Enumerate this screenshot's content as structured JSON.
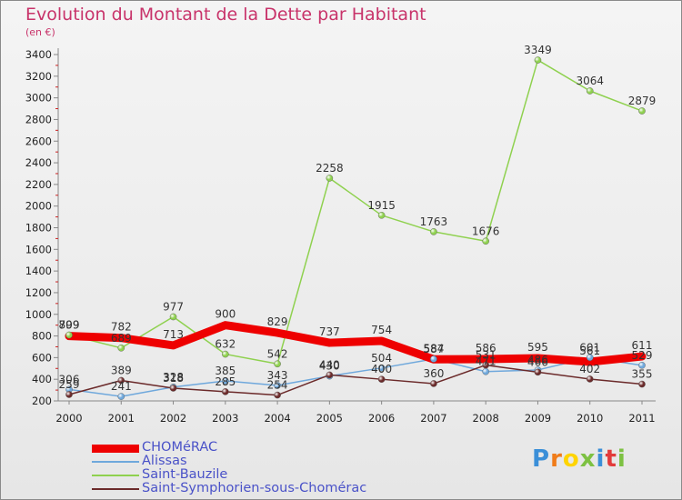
{
  "title": "Evolution du Montant de la Dette par Habitant",
  "subtitle": "(en €)",
  "chart_data": {
    "type": "line",
    "title": "Evolution du Montant de la Dette par Habitant",
    "ylabel": "(en €)",
    "xlabel": "",
    "x": [
      "2000",
      "2001",
      "2002",
      "2003",
      "2004",
      "2005",
      "2006",
      "2007",
      "2008",
      "2009",
      "2010",
      "2011"
    ],
    "ylim": [
      200,
      3400
    ],
    "yticks": [
      200,
      400,
      600,
      800,
      1000,
      1200,
      1400,
      1600,
      1800,
      2000,
      2200,
      2400,
      2600,
      2800,
      3000,
      3200,
      3400
    ],
    "grid": false,
    "legend_position": "bottom-left",
    "series": [
      {
        "name": "CHOMéRAC",
        "color": "#ee0000",
        "values": [
          799,
          782,
          713,
          900,
          829,
          737,
          754,
          584,
          586,
          595,
          561,
          611
        ]
      },
      {
        "name": "Alissas",
        "color": "#6fa8dc",
        "values": [
          306,
          241,
          328,
          385,
          343,
          430,
          504,
          587,
          471,
          486,
          601,
          529
        ]
      },
      {
        "name": "Saint-Bauzile",
        "color": "#8fd14f",
        "values": [
          809,
          689,
          977,
          632,
          542,
          2258,
          1915,
          1763,
          1676,
          3349,
          3064,
          2879
        ]
      },
      {
        "name": "Saint-Symphorien-sous-Chomérac",
        "color": "#6b2a2a",
        "values": [
          259,
          389,
          318,
          285,
          254,
          440,
          400,
          360,
          531,
          466,
          402,
          355
        ]
      }
    ]
  },
  "logo": {
    "text": "Proxiti",
    "colors": [
      "#3b8fd8",
      "#f07c1a",
      "#ffd400",
      "#7dc142",
      "#3b8fd8",
      "#e23b3b",
      "#7dc142"
    ]
  }
}
